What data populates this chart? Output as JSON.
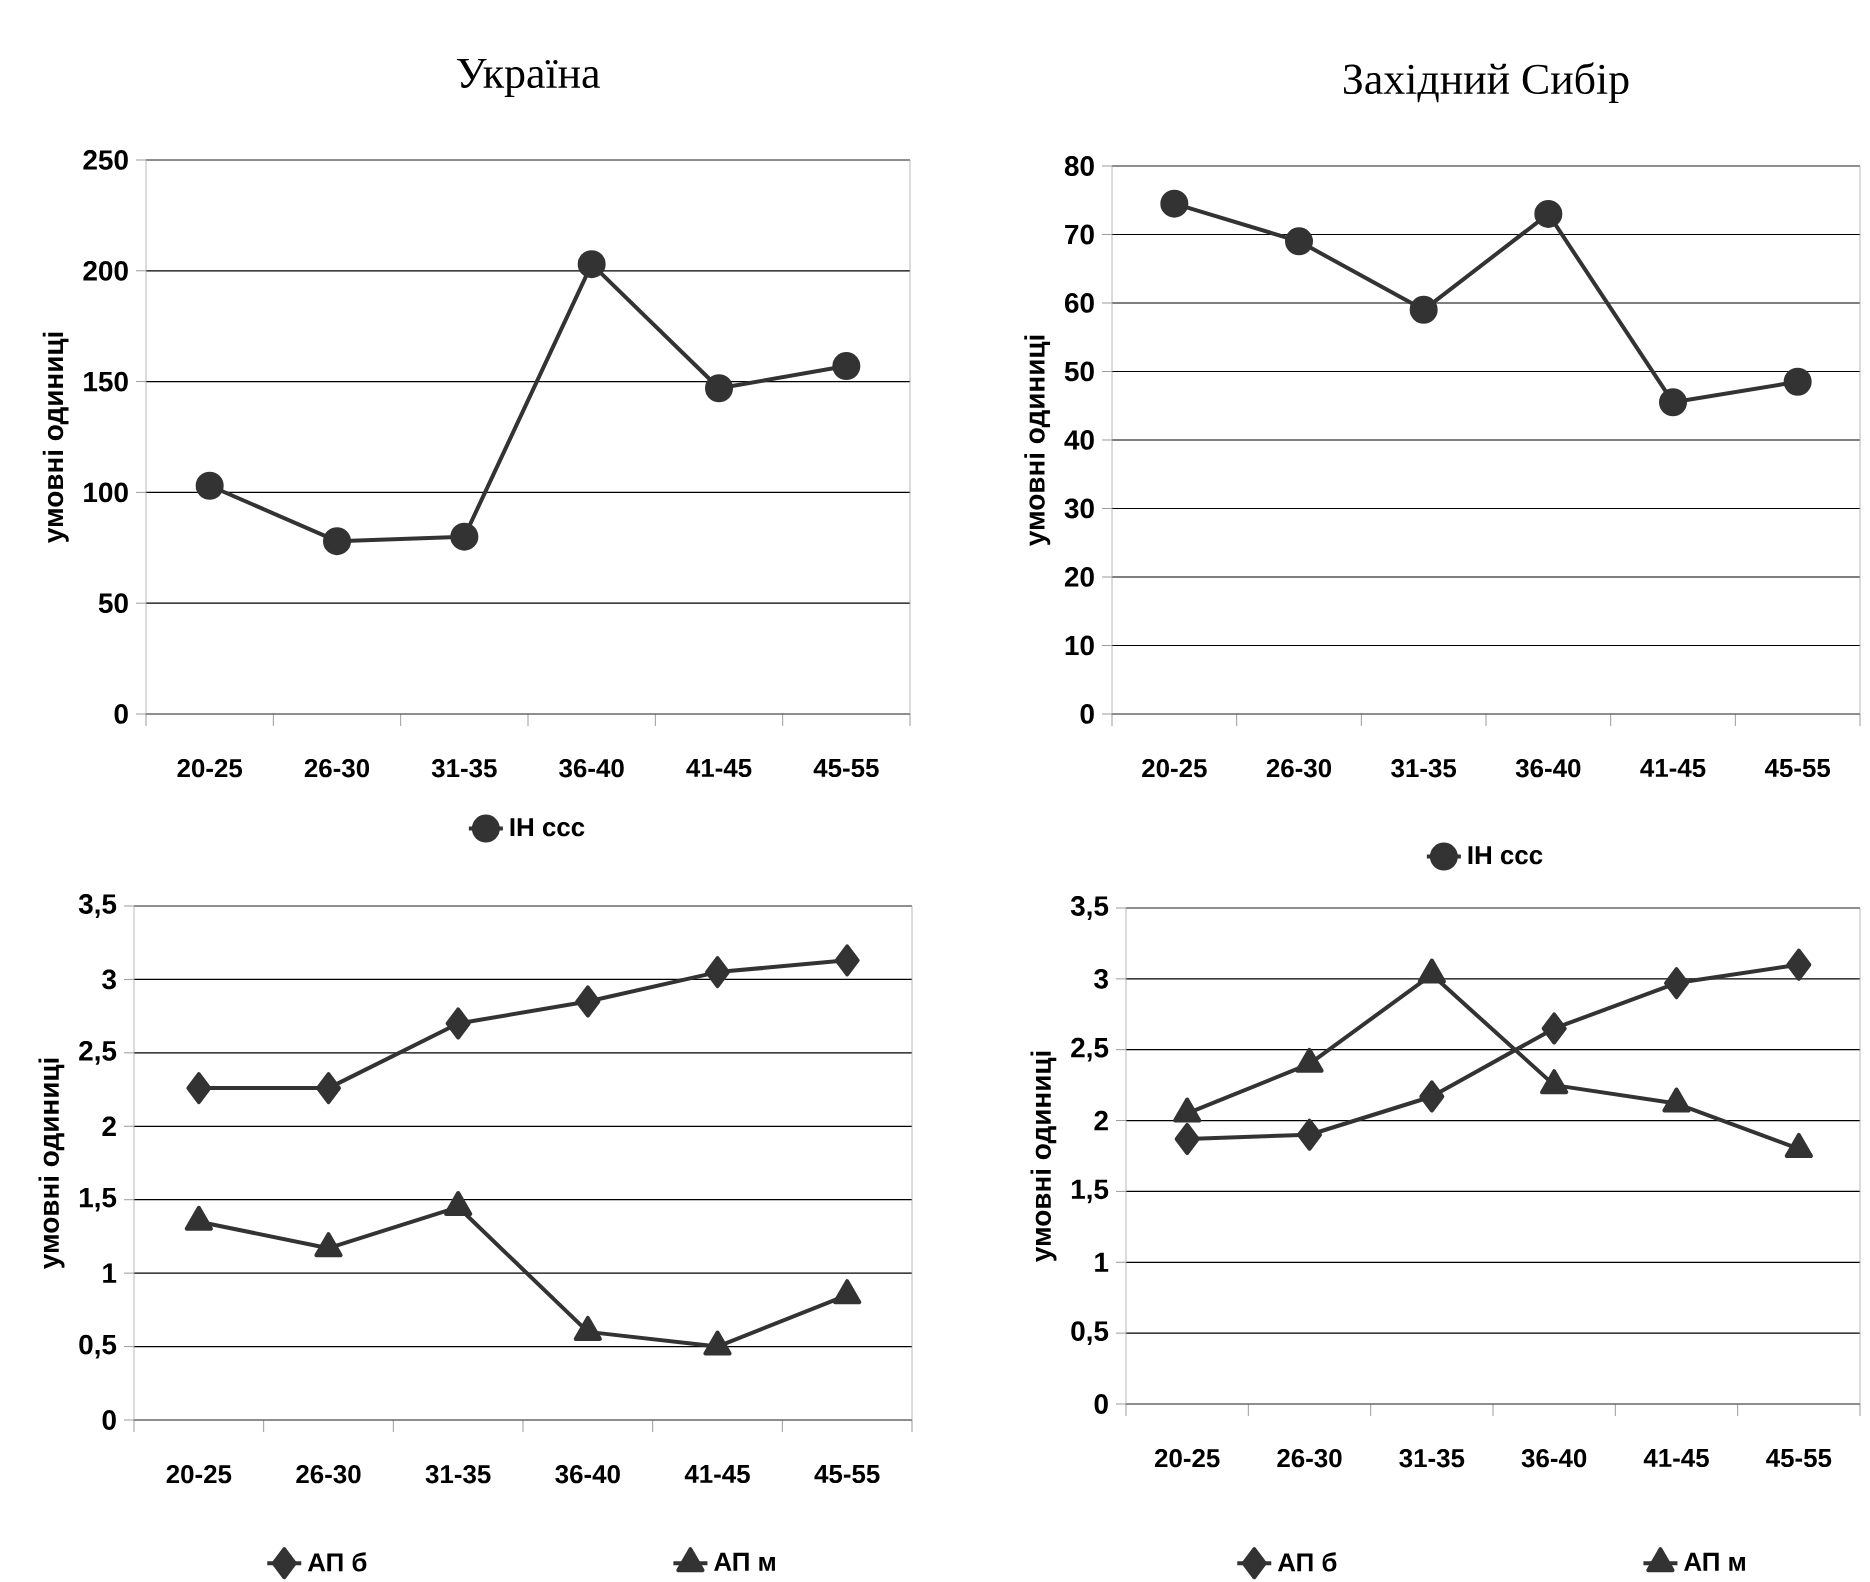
{
  "chart_data": [
    {
      "type": "line",
      "title": "Україна",
      "ylabel": "умовні одиниці",
      "categories": [
        "20-25",
        "26-30",
        "31-35",
        "36-40",
        "41-45",
        "45-55"
      ],
      "ylim": [
        0,
        250
      ],
      "yticks": [
        0,
        50,
        100,
        150,
        200,
        250
      ],
      "grid": "y",
      "legend": "bottom",
      "series": [
        {
          "name": "ІН ссс",
          "color": "#333333",
          "marker": "circle",
          "values": [
            103,
            78,
            80,
            203,
            147,
            157
          ]
        }
      ]
    },
    {
      "type": "line",
      "title": "Західний Сибір",
      "ylabel": "умовні одиниці",
      "categories": [
        "20-25",
        "26-30",
        "31-35",
        "36-40",
        "41-45",
        "45-55"
      ],
      "ylim": [
        0,
        80
      ],
      "yticks": [
        0,
        10,
        20,
        30,
        40,
        50,
        60,
        70,
        80
      ],
      "grid": "y",
      "legend": "bottom",
      "series": [
        {
          "name": "ІН ссс",
          "color": "#333333",
          "marker": "circle",
          "values": [
            74.5,
            69,
            59,
            73,
            45.5,
            48.5
          ]
        }
      ]
    },
    {
      "type": "line",
      "ylabel": "умовні одиниці",
      "categories": [
        "20-25",
        "26-30",
        "31-35",
        "36-40",
        "41-45",
        "45-55"
      ],
      "ylim": [
        0,
        3.5
      ],
      "yticks": [
        0,
        {
          "value": 0.5,
          "label": "0,5"
        },
        1,
        {
          "value": 1.5,
          "label": "1,5"
        },
        2,
        {
          "value": 2.5,
          "label": "2,5"
        },
        3,
        {
          "value": 3.5,
          "label": "3,5"
        }
      ],
      "grid": "y",
      "legend": "bottom",
      "series": [
        {
          "name": "АП б",
          "color": "#333333",
          "marker": "diamond",
          "values": [
            2.26,
            2.26,
            2.7,
            2.85,
            3.05,
            3.13
          ]
        },
        {
          "name": "АП м",
          "color": "#333333",
          "marker": "triangle",
          "values": [
            1.35,
            1.17,
            1.45,
            0.6,
            0.5,
            0.85
          ]
        }
      ]
    },
    {
      "type": "line",
      "ylabel": "умовні одиниці",
      "categories": [
        "20-25",
        "26-30",
        "31-35",
        "36-40",
        "41-45",
        "45-55"
      ],
      "ylim": [
        0,
        3.5
      ],
      "yticks": [
        0,
        {
          "value": 0.5,
          "label": "0,5"
        },
        1,
        {
          "value": 1.5,
          "label": "1,5"
        },
        2,
        {
          "value": 2.5,
          "label": "2,5"
        },
        3,
        {
          "value": 3.5,
          "label": "3,5"
        }
      ],
      "grid": "y",
      "legend": "bottom",
      "series": [
        {
          "name": "АП б",
          "color": "#333333",
          "marker": "diamond",
          "values": [
            1.87,
            1.9,
            2.17,
            2.65,
            2.97,
            3.1
          ]
        },
        {
          "name": "АП м",
          "color": "#333333",
          "marker": "triangle",
          "values": [
            2.05,
            2.4,
            3.03,
            2.25,
            2.12,
            1.8
          ]
        }
      ]
    }
  ]
}
